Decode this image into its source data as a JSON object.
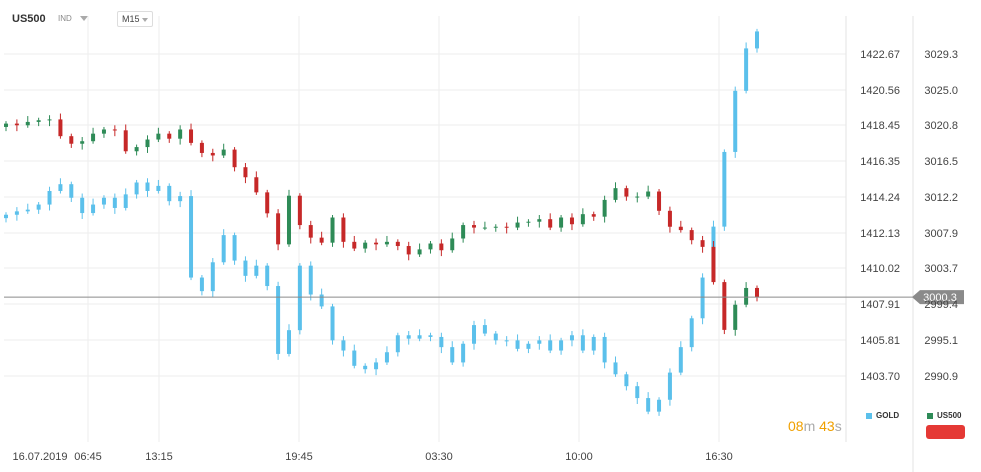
{
  "header": {
    "symbol": "US500",
    "sub": "IND",
    "timeframe": "M15"
  },
  "timer": {
    "min": "08",
    "min_unit": "m",
    "sec": "43",
    "sec_unit": "s"
  },
  "legend": [
    {
      "label": "GOLD",
      "color": "#5bc0eb"
    },
    {
      "label": "US500",
      "color": "#2e8b57"
    }
  ],
  "current_price_label": "3000.3",
  "chart_data": {
    "type": "candlestick",
    "x_tick_labels": [
      "16.07.2019",
      "06:45",
      "13:15",
      "19:45",
      "03:30",
      "10:00",
      "16:30"
    ],
    "left_axis": {
      "series": "GOLD",
      "ticks": [
        1422.67,
        1420.56,
        1418.45,
        1416.35,
        1414.24,
        1412.13,
        1410.02,
        1407.91,
        1405.81,
        1403.7
      ]
    },
    "right_axis": {
      "series": "US500",
      "ticks": [
        3029.3,
        3025.0,
        3020.8,
        3016.5,
        3012.2,
        3007.9,
        3003.7,
        2999.4,
        2995.1,
        2990.9
      ]
    },
    "series": [
      {
        "name": "GOLD",
        "axis": "left",
        "close_approx": [
          1413.2,
          1413.4,
          1413.5,
          1413.8,
          1414.6,
          1415.0,
          1414.2,
          1413.3,
          1413.8,
          1414.2,
          1413.6,
          1414.4,
          1415.1,
          1414.6,
          1414.9,
          1414.0,
          1414.3,
          1409.5,
          1408.7,
          1410.4,
          1412.0,
          1410.5,
          1409.6,
          1410.2,
          1409.0,
          1405.0,
          1406.4,
          1410.2,
          1408.5,
          1407.8,
          1405.8,
          1405.2,
          1404.3,
          1404.1,
          1404.5,
          1405.1,
          1406.1,
          1405.9,
          1406.1,
          1406.0,
          1405.4,
          1404.5,
          1405.6,
          1406.7,
          1406.2,
          1405.8,
          1405.8,
          1405.3,
          1405.6,
          1405.8,
          1405.2,
          1405.8,
          1406.1,
          1405.2,
          1406.0,
          1404.5,
          1403.8,
          1403.1,
          1402.4,
          1401.6,
          1402.3,
          1403.9,
          1405.4,
          1407.1,
          1409.5,
          1412.5,
          1416.9,
          1420.5,
          1423.0,
          1424.0
        ]
      },
      {
        "name": "US500",
        "axis": "right",
        "close_approx": [
          3021.0,
          3020.8,
          3021.2,
          3021.4,
          3021.5,
          3019.5,
          3018.6,
          3018.9,
          3019.8,
          3020.3,
          3020.2,
          3017.7,
          3018.2,
          3019.1,
          3019.8,
          3019.2,
          3020.3,
          3018.7,
          3017.5,
          3017.2,
          3017.9,
          3015.8,
          3014.6,
          3012.8,
          3010.3,
          3006.6,
          3012.4,
          3008.9,
          3007.4,
          3006.8,
          3009.8,
          3006.9,
          3006.1,
          3006.8,
          3006.6,
          3006.9,
          3006.4,
          3005.4,
          3006.0,
          3006.7,
          3005.9,
          3007.3,
          3008.9,
          3008.6,
          3008.6,
          3008.7,
          3008.6,
          3009.2,
          3009.3,
          3009.6,
          3008.6,
          3009.8,
          3009.0,
          3010.2,
          3009.9,
          3011.9,
          3013.3,
          3012.3,
          3012.3,
          3012.9,
          3010.6,
          3008.7,
          3008.3,
          3007.1,
          3006.3,
          3002.1,
          2996.4,
          2999.4,
          3001.4,
          3000.3
        ]
      }
    ],
    "grid": true
  }
}
